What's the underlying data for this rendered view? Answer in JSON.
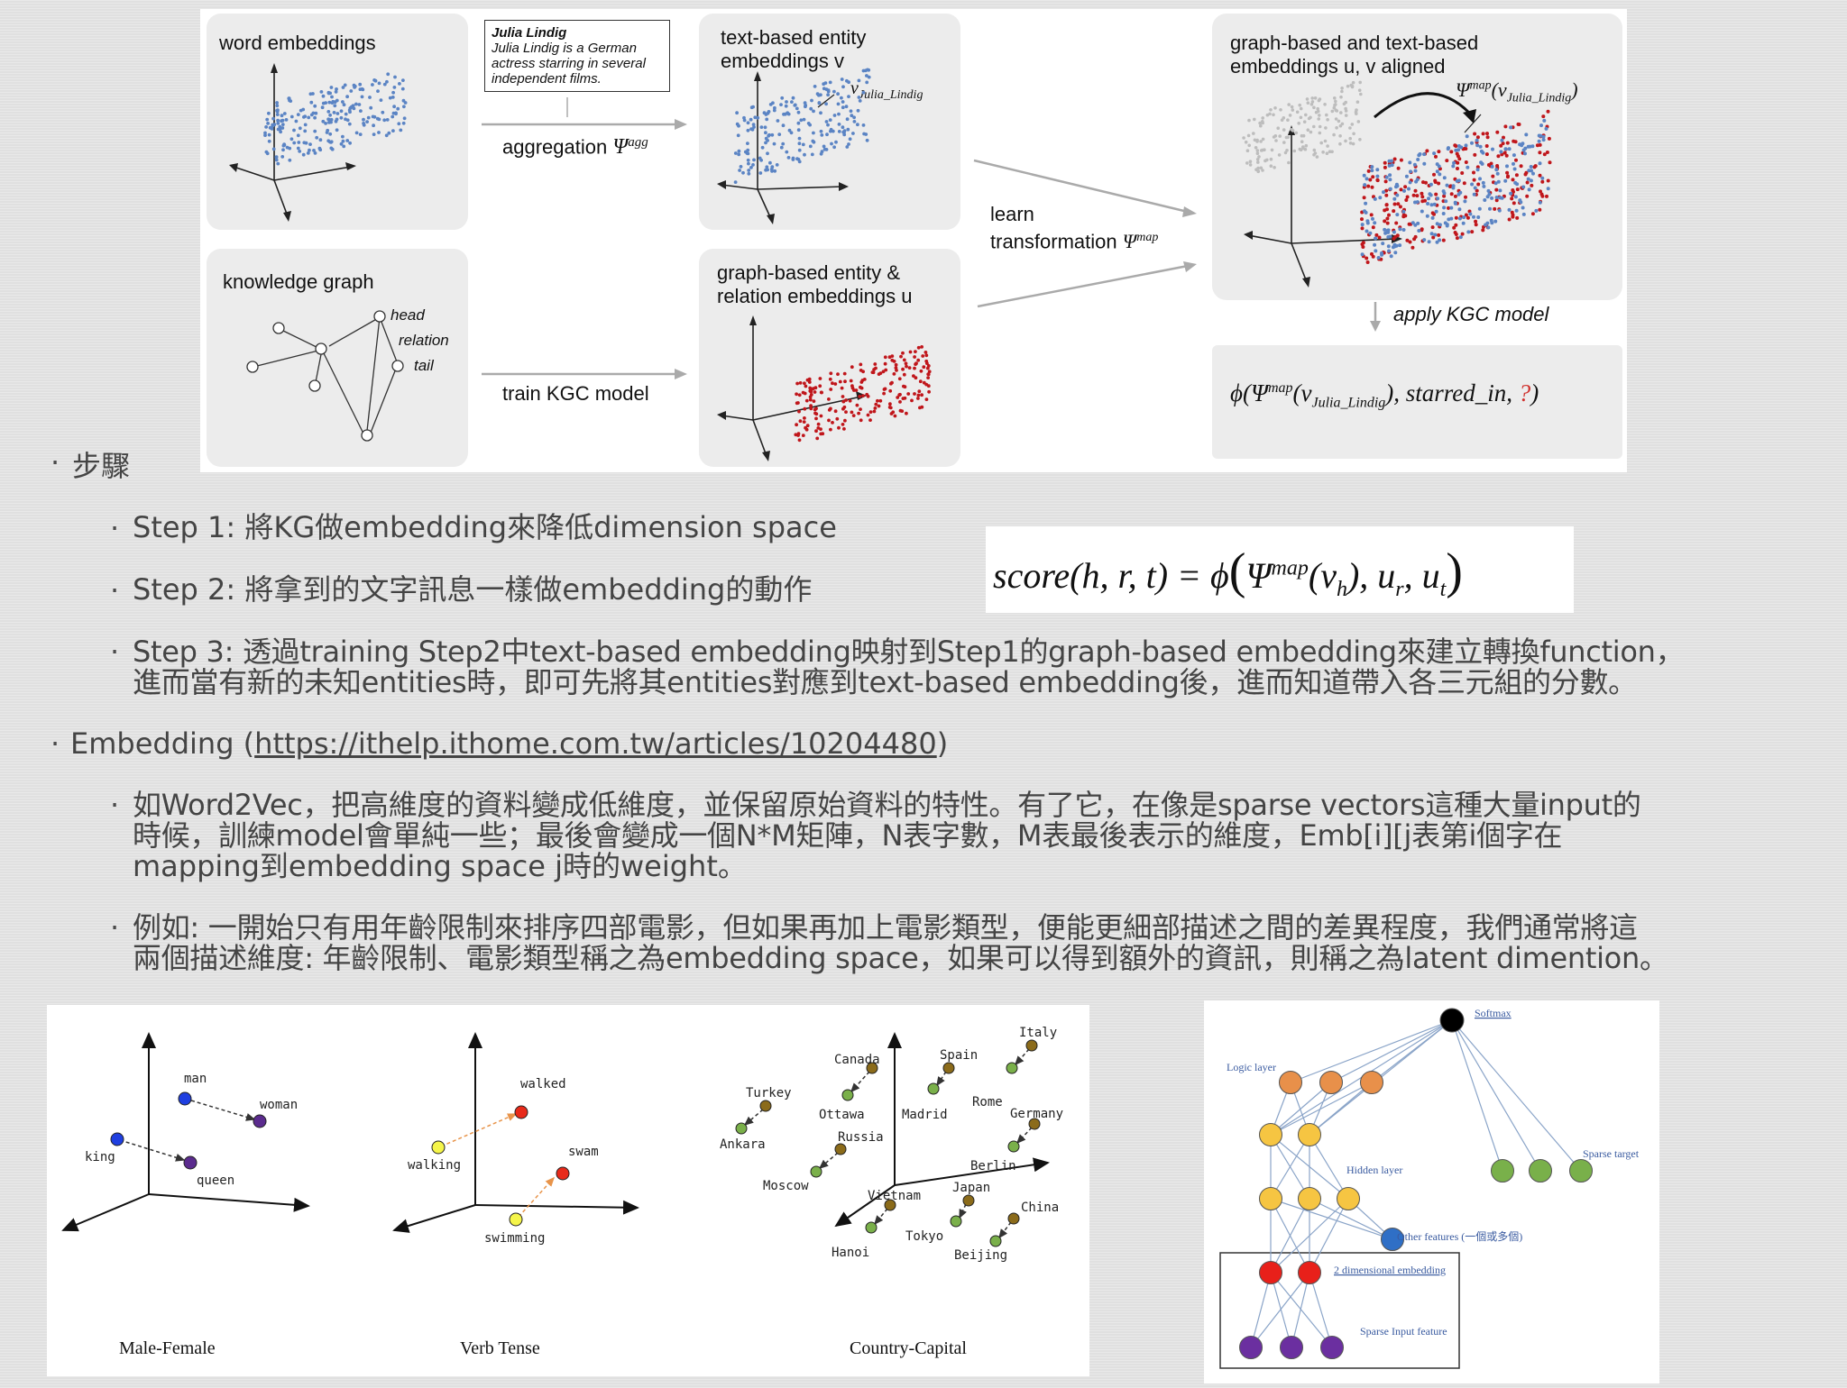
{
  "figure_top": {
    "word_embeddings": "word embeddings",
    "note_title": "Julia Lindig",
    "note_body": [
      "Julia Lindig is a German",
      "actress starring in several",
      "independent films."
    ],
    "aggregation": "aggregation",
    "aggregation_sym": "Ψ",
    "aggregation_sup": "agg",
    "text_entity_line1": "text-based entity",
    "text_entity_line2": "embeddings v",
    "v_label": "v",
    "v_sub": "Julia_Lindig",
    "knowledge_graph": "knowledge graph",
    "head": "head",
    "relation": "relation",
    "tail": "tail",
    "train_kgc": "train KGC model",
    "graph_entity_line1": "graph-based entity &",
    "graph_entity_line2": "relation embeddings u",
    "learn": "learn",
    "transformation": "transformation",
    "transformation_sym": "Ψ",
    "transformation_sup": "map",
    "aligned_line1": "graph-based and text-based",
    "aligned_line2": "embeddings u, v aligned",
    "psi_label": "Ψ",
    "psi_sup": "map",
    "psi_arg": "(v",
    "psi_sub": "Julia_Lindig",
    "apply_kgc": "apply KGC model",
    "phi_formula_parts": [
      "ϕ(",
      "Ψ",
      "map",
      "(v",
      "Julia_Lindig",
      "), starred_in, ",
      "?",
      ")"
    ]
  },
  "bullets": {
    "steps_heading": "步驟",
    "step1": "Step 1: 將KG做embedding來降低dimension space",
    "step2": "Step 2: 將拿到的文字訊息一樣做embedding的動作",
    "step3_line1": "Step 3: 透過training Step2中text-based embedding映射到Step1的graph-based embedding來建立轉換function，",
    "step3_line2": "進而當有新的未知entities時，即可先將其entities對應到text-based embedding後，進而知道帶入各三元組的分數。",
    "embedding_prefix": "Embedding (",
    "embedding_link": "https://ithelp.ithome.com.tw/articles/10204480",
    "embedding_suffix": ")",
    "w2v_line1": "如Word2Vec，把高維度的資料變成低維度，並保留原始資料的特性。有了它，在像是sparse vectors這種大量input的",
    "w2v_line2": "時候，訓練model會單純一些；最後會變成一個N*M矩陣，N表字數，M表最後表示的維度，Emb[i][j表第i個字在",
    "w2v_line3": "mapping到embedding space j時的weight。",
    "example_line1": "例如: 一開始只有用年齡限制來排序四部電影，但如果再加上電影類型，便能更細部描述之間的差異程度，我們通常將這",
    "example_line2": "兩個描述維度: 年齡限制、電影類型稱之為embedding space，如果可以得到額外的資訊，則稱之為latent dimention。"
  },
  "score_formula": {
    "lhs": "score(h, r, t) = ϕ",
    "psi": "Ψ",
    "sup": "map",
    "arg_open": "(v",
    "arg_sub": "h",
    "middle": "), u",
    "r_sub": "r",
    "comma": ", u",
    "t_sub": "t"
  },
  "figure_bl": {
    "male_female": {
      "caption": "Male-Female",
      "labels": [
        "man",
        "woman",
        "king",
        "queen"
      ]
    },
    "verb_tense": {
      "caption": "Verb Tense",
      "labels": [
        "walked",
        "walking",
        "swam",
        "swimming"
      ]
    },
    "country_capital": {
      "caption": "Country-Capital",
      "labels": [
        "Italy",
        "Canada",
        "Spain",
        "Turkey",
        "Rome",
        "Ottawa",
        "Madrid",
        "Germany",
        "Ankara",
        "Russia",
        "Berlin",
        "Moscow",
        "Japan",
        "Vietnam",
        "China",
        "Tokyo",
        "Hanoi",
        "Beijing"
      ]
    }
  },
  "figure_br": {
    "softmax": "Softmax",
    "logic_layer": "Logic layer",
    "hidden_layer": "Hidden layer",
    "sparse_target": "Sparse target",
    "other_features": "Other features (一個或多個)",
    "embedding_2d": "2 dimensional embedding",
    "sparse_input": "Sparse Input feature"
  },
  "colors": {
    "text_blue": "#5b84c4",
    "graph_red": "#c0161b",
    "gray_points": "#bdbdbd"
  }
}
